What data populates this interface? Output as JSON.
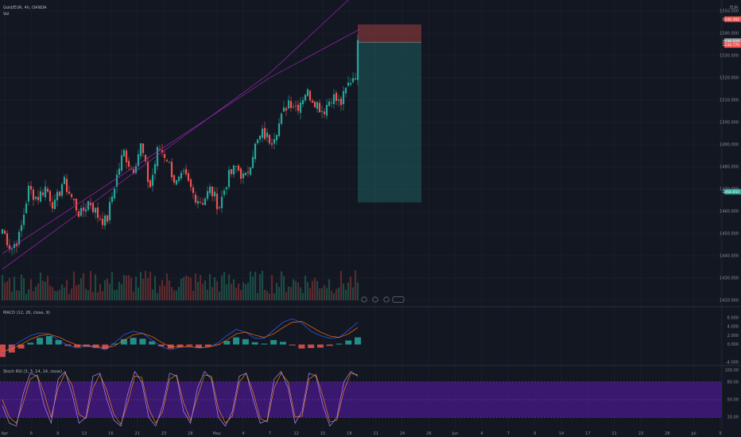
{
  "header": {
    "symbol_line": "Gold/EUR, 4h, OANDA",
    "volume_label": "Vol",
    "currency": "EUR"
  },
  "colors": {
    "background": "#131722",
    "grid": "#1e222d",
    "bull": "#26a69a",
    "bear": "#ef5350",
    "channel": "#9c27b0",
    "macd_line": "#2962ff",
    "signal_line": "#ff6d00",
    "stoch_k": "#7e57c2",
    "stoch_band": "#4a1a8a"
  },
  "time_axis": {
    "labels": [
      "Apr",
      "6",
      "9",
      "13",
      "16",
      "21",
      "23",
      "28",
      "May",
      "4",
      "7",
      "12",
      "15",
      "18",
      "21",
      "24",
      "26",
      "Jun",
      "4",
      "7",
      "9",
      "14",
      "17",
      "21",
      "23",
      "28",
      "Jul",
      "5"
    ]
  },
  "chart_data": [
    {
      "type": "candlestick",
      "title": "Gold/EUR, 4h, OANDA",
      "ylim": [
        1420,
        1550
      ],
      "y_ticks": [
        1420,
        1430,
        1440,
        1450,
        1460,
        1470,
        1480,
        1490,
        1500,
        1510,
        1520,
        1530,
        1540,
        1550
      ],
      "y_tick_labels": [
        "1420.000",
        "1430.000",
        "1440.000",
        "1450.000",
        "1460.000",
        "1470.000",
        "1480.000",
        "1490.000",
        "1500.000",
        "1510.000",
        "1520.000",
        "1530.000",
        "1540.000",
        "1550.000"
      ],
      "close_path": [
        1452,
        1443,
        1449,
        1470,
        1466,
        1471,
        1462,
        1474,
        1466,
        1458,
        1465,
        1458,
        1455,
        1473,
        1487,
        1478,
        1490,
        1470,
        1489,
        1484,
        1472,
        1476,
        1468,
        1464,
        1470,
        1462,
        1475,
        1480,
        1474,
        1488,
        1495,
        1492,
        1500,
        1510,
        1507,
        1514,
        1510,
        1505,
        1512,
        1508,
        1518,
        1524
      ],
      "candle_count": 150,
      "price_tags": [
        {
          "value": "1546.360",
          "kind": "stop"
        },
        {
          "value": "1536.520",
          "kind": "last"
        },
        {
          "value": "1534.770",
          "kind": "entry"
        },
        {
          "value": "1468.850",
          "kind": "target"
        }
      ],
      "position": {
        "entry": 1536,
        "stop": 1544,
        "target": 1464
      },
      "channel": {
        "lower": [
          [
            0,
            1441
          ],
          [
            112,
            1520
          ],
          [
            150,
            1542
          ]
        ],
        "upper": [
          [
            0,
            1434
          ],
          [
            112,
            1522
          ],
          [
            150,
            1560
          ]
        ]
      }
    },
    {
      "type": "bar",
      "title": "MACD (12, 26, close, 9)",
      "ylim": [
        -4,
        6
      ],
      "y_ticks": [
        -4,
        0,
        2,
        4,
        6
      ],
      "y_tick_labels": [
        "-4.000",
        "0.000",
        "2.000",
        "4.000",
        "6.000"
      ],
      "histogram": [
        -2.8,
        -1.8,
        -0.9,
        0.4,
        1.5,
        1.9,
        1.0,
        -0.3,
        -0.6,
        -0.5,
        -0.8,
        -1.0,
        0.2,
        1.2,
        1.5,
        1.3,
        0.7,
        -0.4,
        -0.9,
        -0.6,
        -0.3,
        -0.7,
        -0.5,
        -0.1,
        0.8,
        1.6,
        1.2,
        0.5,
        0.2,
        1.0,
        0.6,
        -0.2,
        -0.9,
        -0.8,
        -0.7,
        -0.3,
        0.2,
        0.9,
        1.6
      ],
      "macd_line": [
        -2.0,
        -0.5,
        0.8,
        2.0,
        2.6,
        2.4,
        1.0,
        -0.2,
        -0.8,
        -0.4,
        -0.6,
        -1.2,
        0.4,
        2.2,
        3.0,
        2.5,
        1.0,
        -0.5,
        -1.2,
        -0.6,
        -0.4,
        -0.8,
        -0.6,
        0.3,
        2.0,
        3.4,
        2.8,
        1.4,
        1.4,
        3.2,
        5.0,
        5.8,
        4.8,
        3.0,
        2.0,
        1.4,
        1.6,
        3.2,
        5.0
      ],
      "signal_line": [
        -1.6,
        -1.0,
        0.0,
        1.2,
        2.0,
        2.3,
        1.7,
        0.7,
        -0.1,
        -0.3,
        -0.4,
        -0.8,
        -0.3,
        1.0,
        2.2,
        2.5,
        1.8,
        0.5,
        -0.5,
        -0.6,
        -0.5,
        -0.7,
        -0.6,
        -0.1,
        1.0,
        2.4,
        2.8,
        2.1,
        1.6,
        2.4,
        3.8,
        5.0,
        5.2,
        4.0,
        2.8,
        1.9,
        1.6,
        2.4,
        3.8
      ]
    },
    {
      "type": "line",
      "title": "Stoch RSI (3, 3, 14, 14, close)",
      "ylim": [
        0,
        100
      ],
      "y_ticks": [
        20,
        50,
        80,
        100
      ],
      "y_tick_labels": [
        "20.00",
        "50.00",
        "80.00",
        "100.00"
      ],
      "band": [
        20,
        80
      ],
      "k": [
        40,
        10,
        5,
        60,
        95,
        90,
        40,
        10,
        85,
        98,
        60,
        10,
        20,
        90,
        95,
        50,
        15,
        5,
        60,
        98,
        80,
        20,
        5,
        40,
        95,
        90,
        30,
        10,
        70,
        98,
        85,
        20,
        5,
        30,
        90,
        95,
        50,
        10,
        15,
        85,
        98,
        70,
        10,
        30,
        95,
        90,
        40,
        5,
        20,
        80,
        98,
        90
      ],
      "d": [
        50,
        20,
        10,
        45,
        85,
        92,
        60,
        20,
        70,
        95,
        75,
        25,
        18,
        70,
        93,
        65,
        25,
        8,
        45,
        90,
        88,
        35,
        10,
        30,
        85,
        92,
        45,
        15,
        55,
        92,
        90,
        35,
        10,
        22,
        80,
        95,
        62,
        18,
        12,
        70,
        95,
        80,
        20,
        22,
        85,
        93,
        55,
        12,
        15,
        65,
        95,
        92
      ]
    }
  ]
}
